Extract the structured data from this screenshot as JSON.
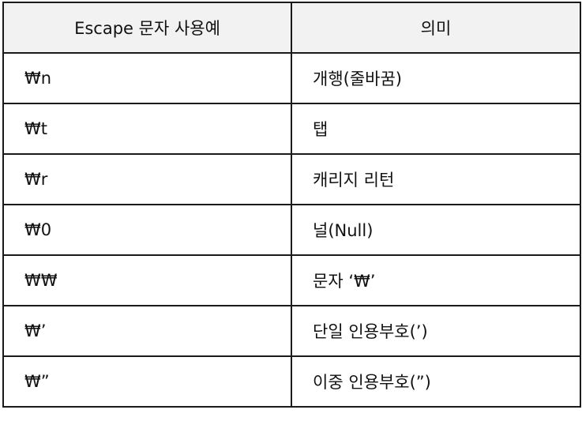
{
  "table": {
    "headers": [
      "Escape 문자 사용예",
      "의미"
    ],
    "rows": [
      {
        "escape": "₩n",
        "meaning": "개행(줄바꿈)"
      },
      {
        "escape": "₩t",
        "meaning": "탭"
      },
      {
        "escape": "₩r",
        "meaning": "캐리지 리턴"
      },
      {
        "escape": "₩0",
        "meaning": "널(Null)"
      },
      {
        "escape": "₩₩",
        "meaning": "문자 ‘₩’"
      },
      {
        "escape": "₩’",
        "meaning": "단일 인용부호(’)"
      },
      {
        "escape": "₩”",
        "meaning": "이중 인용부호(”)"
      }
    ]
  },
  "colors": {
    "header_bg": "#f2f2f2",
    "border": "#1a1a1a",
    "text": "#111111"
  }
}
